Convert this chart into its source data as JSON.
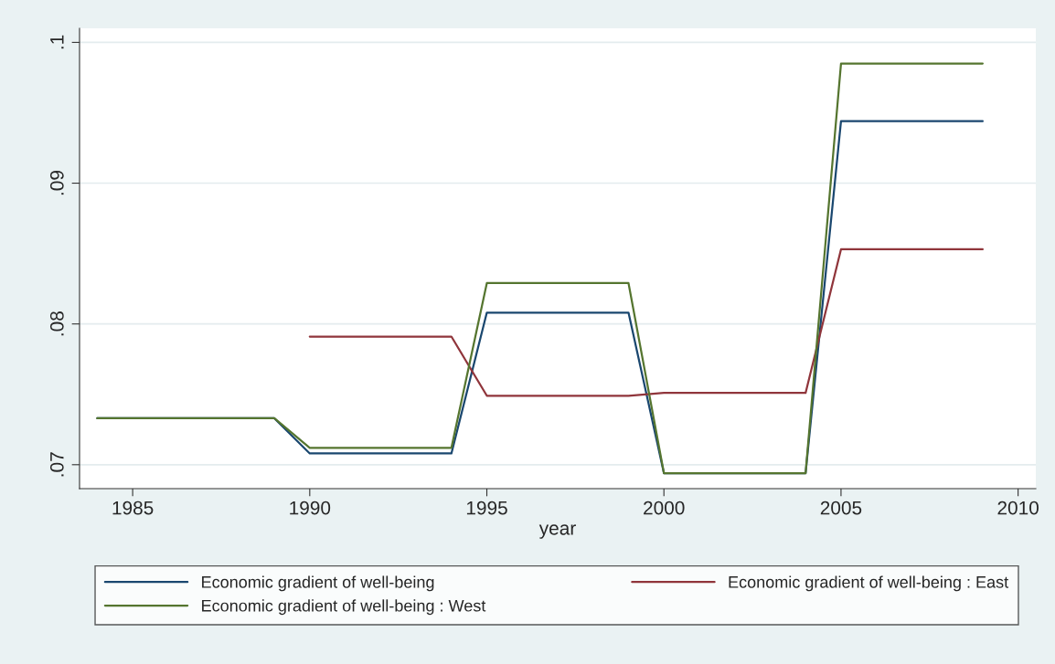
{
  "chart_data": {
    "type": "line",
    "xlabel": "year",
    "x": [
      1984,
      1985,
      1986,
      1987,
      1988,
      1989,
      1990,
      1991,
      1992,
      1993,
      1994,
      1995,
      1996,
      1997,
      1998,
      1999,
      2000,
      2001,
      2002,
      2003,
      2004,
      2005,
      2006,
      2007,
      2008,
      2009
    ],
    "series": [
      {
        "name": "Economic gradient of well-being",
        "color": "#1a476f",
        "values": [
          0.0733,
          0.0733,
          0.0733,
          0.0733,
          0.0733,
          0.0733,
          0.0708,
          0.0708,
          0.0708,
          0.0708,
          0.0708,
          0.0808,
          0.0808,
          0.0808,
          0.0808,
          0.0808,
          0.0694,
          0.0694,
          0.0694,
          0.0694,
          0.0694,
          0.0944,
          0.0944,
          0.0944,
          0.0944,
          0.0944
        ]
      },
      {
        "name": "Economic gradient of well-being : East",
        "color": "#90353b",
        "values": [
          null,
          null,
          null,
          null,
          null,
          null,
          0.0791,
          0.0791,
          0.0791,
          0.0791,
          0.0791,
          0.0749,
          0.0749,
          0.0749,
          0.0749,
          0.0749,
          0.0751,
          0.0751,
          0.0751,
          0.0751,
          0.0751,
          0.0853,
          0.0853,
          0.0853,
          0.0853,
          0.0853
        ]
      },
      {
        "name": "Economic gradient of well-being : West",
        "color": "#55752f",
        "values": [
          0.0733,
          0.0733,
          0.0733,
          0.0733,
          0.0733,
          0.0733,
          0.0712,
          0.0712,
          0.0712,
          0.0712,
          0.0712,
          0.0829,
          0.0829,
          0.0829,
          0.0829,
          0.0829,
          0.0694,
          0.0694,
          0.0694,
          0.0694,
          0.0694,
          0.0985,
          0.0985,
          0.0985,
          0.0985,
          0.0985
        ]
      }
    ],
    "xlim": [
      1983.5,
      2010.5
    ],
    "xticks": [
      1985,
      1990,
      1995,
      2000,
      2005,
      2010
    ],
    "ylim": [
      0.0683,
      0.101
    ],
    "yticks": [
      {
        "value": 0.07,
        "label": ".07"
      },
      {
        "value": 0.08,
        "label": ".08"
      },
      {
        "value": 0.09,
        "label": ".09"
      },
      {
        "value": 0.1,
        "label": ".1"
      }
    ],
    "grid": "y",
    "legend": "bottom",
    "marker": "none",
    "line_style": "solid"
  }
}
